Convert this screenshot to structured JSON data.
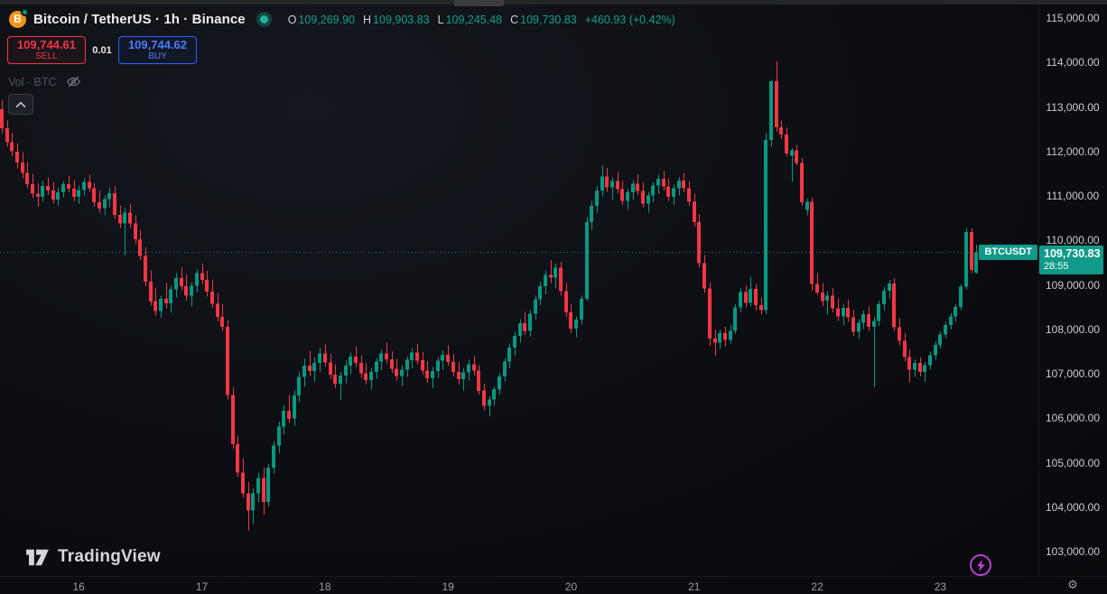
{
  "header": {
    "symbol_title": "Bitcoin / TetherUS · 1h · Binance",
    "ohlc": {
      "o_label": "O",
      "o_value": "109,269.90",
      "h_label": "H",
      "h_value": "109,903.83",
      "l_label": "L",
      "l_value": "109,245.48",
      "c_label": "C",
      "c_value": "109,730.83",
      "change": "+460.93 (+0.42%)"
    }
  },
  "trade_panel": {
    "sell_price": "109,744.61",
    "sell_label": "SELL",
    "spread": "0.01",
    "buy_price": "109,744.62",
    "buy_label": "BUY"
  },
  "legend": {
    "volume_label": "Vol · BTC"
  },
  "price_label": {
    "symbol": "BTCUSDT",
    "price": "109,730.83",
    "countdown": "28:55"
  },
  "footer": {
    "brand": "TradingView"
  },
  "colors": {
    "up": "#089981",
    "down": "#f23645",
    "label_bg": "#0f9a89",
    "sell_red": "#f23645",
    "buy_blue": "#2962ff",
    "accent_purple": "#ba41ce",
    "bitcoin_orange": "#f7931a"
  },
  "icons": {
    "bitcoin_glyph": "B",
    "gear_glyph": "⚙"
  },
  "chart_data": {
    "type": "candlestick",
    "symbol": "BTCUSDT",
    "interval": "1h",
    "exchange": "Binance",
    "current_price": 109730.83,
    "y_axis": {
      "ticks": [
        {
          "value": 115000,
          "label": "115,000.00"
        },
        {
          "value": 114000,
          "label": "114,000.00"
        },
        {
          "value": 113000,
          "label": "113,000.00"
        },
        {
          "value": 112000,
          "label": "112,000.00"
        },
        {
          "value": 111000,
          "label": "111,000.00"
        },
        {
          "value": 110000,
          "label": "110,000.00"
        },
        {
          "value": 109000,
          "label": "109,000.00"
        },
        {
          "value": 108000,
          "label": "108,000.00"
        },
        {
          "value": 107000,
          "label": "107,000.00"
        },
        {
          "value": 106000,
          "label": "106,000.00"
        },
        {
          "value": 105000,
          "label": "105,000.00"
        },
        {
          "value": 104000,
          "label": "104,000.00"
        },
        {
          "value": 103000,
          "label": "103,000.00"
        }
      ]
    },
    "x_axis": {
      "ticks": [
        {
          "label": "16",
          "candle_index": 15
        },
        {
          "label": "17",
          "candle_index": 39
        },
        {
          "label": "18",
          "candle_index": 63
        },
        {
          "label": "19",
          "candle_index": 87
        },
        {
          "label": "20",
          "candle_index": 111
        },
        {
          "label": "21",
          "candle_index": 135
        },
        {
          "label": "22",
          "candle_index": 159
        },
        {
          "label": "23",
          "candle_index": 183
        }
      ]
    },
    "candles": [
      [
        112950,
        113150,
        112400,
        112520
      ],
      [
        112520,
        112700,
        112110,
        112210
      ],
      [
        112210,
        112420,
        111890,
        112000
      ],
      [
        112000,
        112180,
        111620,
        111750
      ],
      [
        111750,
        111980,
        111410,
        111520
      ],
      [
        111520,
        111760,
        111180,
        111260
      ],
      [
        111260,
        111500,
        110950,
        111050
      ],
      [
        111050,
        111280,
        110760,
        110980
      ],
      [
        110980,
        111350,
        110870,
        111220
      ],
      [
        111220,
        111420,
        111020,
        111120
      ],
      [
        111120,
        111310,
        110830,
        110920
      ],
      [
        110920,
        111190,
        110780,
        111080
      ],
      [
        111080,
        111330,
        110960,
        111260
      ],
      [
        111260,
        111450,
        111080,
        111160
      ],
      [
        111160,
        111360,
        110890,
        110980
      ],
      [
        110980,
        111230,
        110820,
        111130
      ],
      [
        111130,
        111400,
        111010,
        111310
      ],
      [
        111310,
        111480,
        111090,
        111170
      ],
      [
        111170,
        111290,
        110760,
        110860
      ],
      [
        110860,
        111120,
        110620,
        110720
      ],
      [
        110720,
        111010,
        110560,
        110930
      ],
      [
        110930,
        111190,
        110750,
        111060
      ],
      [
        111060,
        111220,
        110480,
        110570
      ],
      [
        110570,
        110780,
        110280,
        110380
      ],
      [
        110380,
        110730,
        109660,
        110620
      ],
      [
        110620,
        110820,
        110280,
        110380
      ],
      [
        110380,
        110560,
        109920,
        110020
      ],
      [
        110020,
        110230,
        109560,
        109650
      ],
      [
        109650,
        109840,
        108970,
        109070
      ],
      [
        109070,
        109320,
        108530,
        108630
      ],
      [
        108630,
        108920,
        108310,
        108410
      ],
      [
        108410,
        108760,
        108260,
        108690
      ],
      [
        108690,
        109040,
        108460,
        108580
      ],
      [
        108580,
        108980,
        108370,
        108900
      ],
      [
        108900,
        109260,
        108720,
        109150
      ],
      [
        109150,
        109400,
        108880,
        108970
      ],
      [
        108970,
        109230,
        108640,
        108760
      ],
      [
        108760,
        109060,
        108510,
        108980
      ],
      [
        108980,
        109350,
        108830,
        109260
      ],
      [
        109260,
        109480,
        109020,
        109110
      ],
      [
        109110,
        109310,
        108740,
        108850
      ],
      [
        108850,
        109120,
        108480,
        108570
      ],
      [
        108570,
        108820,
        108180,
        108280
      ],
      [
        108280,
        108560,
        107950,
        108060
      ],
      [
        108060,
        108210,
        106420,
        106520
      ],
      [
        106520,
        106700,
        105310,
        105420
      ],
      [
        105420,
        105600,
        104680,
        104780
      ],
      [
        104780,
        105090,
        104210,
        104310
      ],
      [
        104310,
        104560,
        103480,
        103920
      ],
      [
        103920,
        104420,
        103620,
        104310
      ],
      [
        104310,
        104780,
        104110,
        104650
      ],
      [
        104650,
        104890,
        103830,
        104120
      ],
      [
        104120,
        104980,
        104020,
        104890
      ],
      [
        104890,
        105480,
        104760,
        105390
      ],
      [
        105390,
        105920,
        105210,
        105810
      ],
      [
        105810,
        106280,
        105640,
        106170
      ],
      [
        106170,
        106520,
        105890,
        105990
      ],
      [
        105990,
        106620,
        105830,
        106510
      ],
      [
        106510,
        107050,
        106360,
        106930
      ],
      [
        106930,
        107330,
        106710,
        107180
      ],
      [
        107180,
        107520,
        106950,
        107060
      ],
      [
        107060,
        107380,
        106820,
        107240
      ],
      [
        107240,
        107590,
        107040,
        107460
      ],
      [
        107460,
        107660,
        107160,
        107250
      ],
      [
        107250,
        107450,
        106890,
        106980
      ],
      [
        106980,
        107210,
        106680,
        106780
      ],
      [
        106780,
        107040,
        106410,
        106960
      ],
      [
        106960,
        107290,
        106790,
        107180
      ],
      [
        107180,
        107480,
        106990,
        107390
      ],
      [
        107390,
        107610,
        107150,
        107240
      ],
      [
        107240,
        107420,
        106910,
        107010
      ],
      [
        107010,
        107230,
        106760,
        106860
      ],
      [
        106860,
        107120,
        106640,
        107040
      ],
      [
        107040,
        107360,
        106880,
        107270
      ],
      [
        107270,
        107550,
        107080,
        107460
      ],
      [
        107460,
        107700,
        107230,
        107320
      ],
      [
        107320,
        107510,
        107020,
        107110
      ],
      [
        107110,
        107340,
        106850,
        106950
      ],
      [
        106950,
        107190,
        106720,
        107090
      ],
      [
        107090,
        107400,
        106930,
        107310
      ],
      [
        107310,
        107570,
        107120,
        107480
      ],
      [
        107480,
        107670,
        107210,
        107300
      ],
      [
        107300,
        107490,
        106980,
        107070
      ],
      [
        107070,
        107280,
        106800,
        106900
      ],
      [
        106900,
        107150,
        106680,
        107060
      ],
      [
        107060,
        107380,
        106900,
        107290
      ],
      [
        107290,
        107530,
        107090,
        107430
      ],
      [
        107430,
        107640,
        107180,
        107260
      ],
      [
        107260,
        107450,
        106940,
        107040
      ],
      [
        107040,
        107260,
        106770,
        106880
      ],
      [
        106880,
        107130,
        106620,
        107030
      ],
      [
        107030,
        107310,
        106850,
        107210
      ],
      [
        107210,
        107400,
        106960,
        107070
      ],
      [
        107070,
        107190,
        106520,
        106620
      ],
      [
        106620,
        106780,
        106180,
        106280
      ],
      [
        106280,
        106490,
        106050,
        106420
      ],
      [
        106420,
        106720,
        106280,
        106650
      ],
      [
        106650,
        107020,
        106530,
        106940
      ],
      [
        106940,
        107350,
        106820,
        107270
      ],
      [
        107270,
        107680,
        107120,
        107590
      ],
      [
        107590,
        107940,
        107410,
        107850
      ],
      [
        107850,
        108230,
        107700,
        108140
      ],
      [
        108140,
        108390,
        107870,
        107960
      ],
      [
        107960,
        108420,
        107830,
        108350
      ],
      [
        108350,
        108760,
        108210,
        108680
      ],
      [
        108680,
        109060,
        108540,
        108970
      ],
      [
        108970,
        109310,
        108790,
        109220
      ],
      [
        109220,
        109560,
        109040,
        109160
      ],
      [
        109160,
        109480,
        108920,
        109390
      ],
      [
        109390,
        109520,
        108760,
        108860
      ],
      [
        108860,
        109040,
        108280,
        108380
      ],
      [
        108380,
        108560,
        107910,
        108010
      ],
      [
        108010,
        108290,
        107820,
        108220
      ],
      [
        108220,
        108760,
        108110,
        108690
      ],
      [
        108690,
        110520,
        108640,
        110410
      ],
      [
        110410,
        110890,
        110230,
        110780
      ],
      [
        110780,
        111230,
        110610,
        111120
      ],
      [
        111120,
        111690,
        110980,
        111440
      ],
      [
        111440,
        111630,
        111090,
        111190
      ],
      [
        111190,
        111420,
        110920,
        111340
      ],
      [
        111340,
        111550,
        111060,
        111150
      ],
      [
        111150,
        111330,
        110800,
        110890
      ],
      [
        110890,
        111160,
        110690,
        111080
      ],
      [
        111080,
        111360,
        110910,
        111270
      ],
      [
        111270,
        111490,
        111020,
        111110
      ],
      [
        111110,
        111300,
        110740,
        110830
      ],
      [
        110830,
        111090,
        110620,
        111010
      ],
      [
        111010,
        111310,
        110860,
        111230
      ],
      [
        111230,
        111480,
        111040,
        111390
      ],
      [
        111390,
        111560,
        111120,
        111210
      ],
      [
        111210,
        111400,
        110890,
        110980
      ],
      [
        110980,
        111250,
        110800,
        111170
      ],
      [
        111170,
        111430,
        111010,
        111350
      ],
      [
        111350,
        111520,
        111080,
        111170
      ],
      [
        111170,
        111330,
        110780,
        110870
      ],
      [
        110870,
        111050,
        110310,
        110410
      ],
      [
        110410,
        110590,
        109390,
        109490
      ],
      [
        109490,
        109670,
        108820,
        108920
      ],
      [
        108920,
        109050,
        107630,
        107790
      ],
      [
        107790,
        107980,
        107410,
        107700
      ],
      [
        107700,
        107990,
        107560,
        107910
      ],
      [
        107910,
        108060,
        107620,
        107760
      ],
      [
        107760,
        108100,
        107680,
        107960
      ],
      [
        107960,
        108560,
        107900,
        108490
      ],
      [
        108490,
        108920,
        108380,
        108840
      ],
      [
        108840,
        108980,
        108490,
        108590
      ],
      [
        108590,
        109180,
        108510,
        108910
      ],
      [
        108910,
        109020,
        108420,
        108540
      ],
      [
        108540,
        108720,
        108330,
        108430
      ],
      [
        108430,
        112420,
        108340,
        112260
      ],
      [
        112260,
        113610,
        112110,
        113580
      ],
      [
        113580,
        114030,
        112440,
        112540
      ],
      [
        112540,
        112700,
        112280,
        112380
      ],
      [
        112380,
        112530,
        111880,
        111950
      ],
      [
        111900,
        112080,
        111310,
        112030
      ],
      [
        112030,
        112150,
        111690,
        111740
      ],
      [
        111740,
        111850,
        110780,
        110860
      ],
      [
        110690,
        110940,
        110560,
        110870
      ],
      [
        110870,
        110960,
        108870,
        109020
      ],
      [
        109020,
        109260,
        108780,
        108830
      ],
      [
        108830,
        109040,
        108520,
        108640
      ],
      [
        108640,
        108860,
        108330,
        108760
      ],
      [
        108760,
        108930,
        108380,
        108470
      ],
      [
        108470,
        108700,
        108190,
        108290
      ],
      [
        108290,
        108560,
        108100,
        108480
      ],
      [
        108480,
        108660,
        108170,
        108270
      ],
      [
        108270,
        108440,
        107850,
        107950
      ],
      [
        107950,
        108230,
        107780,
        108150
      ],
      [
        108150,
        108420,
        108010,
        108340
      ],
      [
        108340,
        108510,
        107960,
        108060
      ],
      [
        108060,
        108280,
        106700,
        108190
      ],
      [
        108190,
        108640,
        108080,
        108560
      ],
      [
        108560,
        108950,
        108430,
        108870
      ],
      [
        108870,
        109110,
        108690,
        109030
      ],
      [
        109030,
        109150,
        107950,
        108050
      ],
      [
        108050,
        108260,
        107640,
        107740
      ],
      [
        107740,
        107920,
        107280,
        107380
      ],
      [
        107380,
        107550,
        106800,
        107090
      ],
      [
        107090,
        107320,
        106930,
        107240
      ],
      [
        107240,
        107380,
        106940,
        107040
      ],
      [
        107040,
        107260,
        106820,
        107190
      ],
      [
        107190,
        107500,
        107090,
        107420
      ],
      [
        107420,
        107730,
        107310,
        107650
      ],
      [
        107650,
        107950,
        107560,
        107880
      ],
      [
        107880,
        108180,
        107790,
        108100
      ],
      [
        108100,
        108360,
        107990,
        108290
      ],
      [
        108290,
        108570,
        108170,
        108500
      ],
      [
        108500,
        109010,
        108420,
        108960
      ],
      [
        108960,
        110280,
        108900,
        110190
      ],
      [
        110190,
        110270,
        109260,
        109340
      ],
      [
        109269.9,
        109903.83,
        109245.48,
        109730.83
      ]
    ]
  }
}
